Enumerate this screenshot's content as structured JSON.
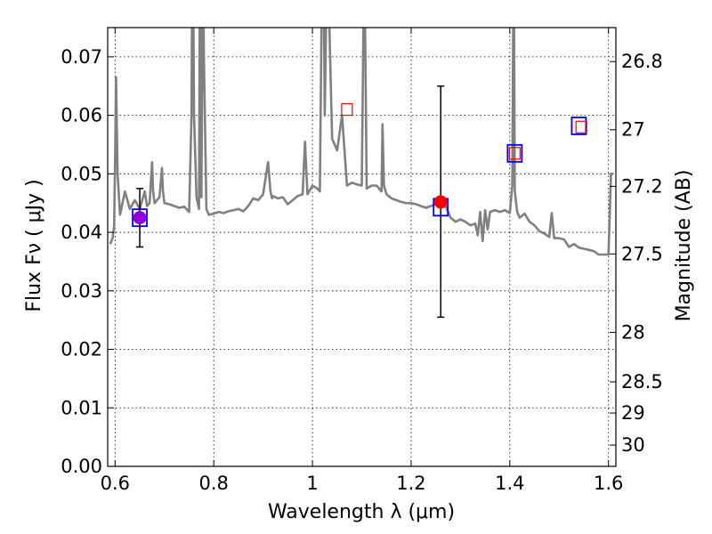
{
  "chart_data": {
    "type": "scatter",
    "xlabel": "Wavelength  λ (μm)",
    "ylabel": "Flux  Fν  ( μJy )",
    "y2label": "Magnitude (AB)",
    "xlim": [
      0.585,
      1.615
    ],
    "ylim": [
      0.0,
      0.075
    ],
    "grid": true,
    "x_ticks": [
      0.6,
      0.8,
      1.0,
      1.2,
      1.4,
      1.6
    ],
    "x_tick_labels": [
      "0.6",
      "0.8",
      "1",
      "1.2",
      "1.4",
      "1.6"
    ],
    "y_ticks": [
      0.0,
      0.01,
      0.02,
      0.03,
      0.04,
      0.05,
      0.06,
      0.07
    ],
    "y_tick_labels": [
      "0.00",
      "0.01",
      "0.02",
      "0.03",
      "0.04",
      "0.05",
      "0.06",
      "0.07"
    ],
    "y2_ticks": [
      26.8,
      27,
      27.2,
      27.5,
      28,
      28.5,
      29,
      30
    ],
    "y2_tick_labels": [
      "26.8",
      "27",
      "27.2",
      "27.5",
      "28",
      "28.5",
      "29",
      "30"
    ],
    "spectrum": {
      "color": "#808080",
      "x": [
        0.59,
        0.595,
        0.598,
        0.6,
        0.602,
        0.605,
        0.61,
        0.615,
        0.62,
        0.63,
        0.64,
        0.65,
        0.66,
        0.665,
        0.67,
        0.675,
        0.677,
        0.68,
        0.69,
        0.695,
        0.697,
        0.7,
        0.71,
        0.72,
        0.73,
        0.74,
        0.75,
        0.755,
        0.757,
        0.76,
        0.765,
        0.77,
        0.772,
        0.775,
        0.778,
        0.78,
        0.785,
        0.79,
        0.8,
        0.81,
        0.82,
        0.83,
        0.84,
        0.85,
        0.86,
        0.87,
        0.88,
        0.89,
        0.9,
        0.91,
        0.915,
        0.918,
        0.92,
        0.93,
        0.94,
        0.95,
        0.96,
        0.97,
        0.98,
        0.985,
        0.988,
        0.99,
        1.0,
        1.01,
        1.015,
        1.02,
        1.022,
        1.025,
        1.03,
        1.04,
        1.05,
        1.06,
        1.07,
        1.08,
        1.09,
        1.1,
        1.105,
        1.11,
        1.12,
        1.13,
        1.14,
        1.142,
        1.145,
        1.15,
        1.16,
        1.17,
        1.18,
        1.19,
        1.2,
        1.21,
        1.22,
        1.23,
        1.24,
        1.25,
        1.26,
        1.27,
        1.28,
        1.29,
        1.3,
        1.31,
        1.32,
        1.33,
        1.335,
        1.34,
        1.345,
        1.35,
        1.355,
        1.36,
        1.37,
        1.38,
        1.39,
        1.4,
        1.405,
        1.408,
        1.41,
        1.415,
        1.42,
        1.43,
        1.44,
        1.45,
        1.46,
        1.47,
        1.48,
        1.485,
        1.49,
        1.5,
        1.51,
        1.52,
        1.53,
        1.54,
        1.55,
        1.56,
        1.57,
        1.58,
        1.59,
        1.595,
        1.6,
        1.605,
        1.61
      ],
      "y": [
        0.038,
        0.039,
        0.041,
        0.052,
        0.0665,
        0.05,
        0.043,
        0.045,
        0.047,
        0.044,
        0.0455,
        0.044,
        0.047,
        0.0445,
        0.045,
        0.052,
        0.047,
        0.045,
        0.046,
        0.051,
        0.047,
        0.045,
        0.0448,
        0.0445,
        0.0442,
        0.0444,
        0.0435,
        0.06,
        0.1,
        0.06,
        0.046,
        0.044,
        0.09,
        0.046,
        0.09,
        0.07,
        0.044,
        0.043,
        0.0432,
        0.0435,
        0.0433,
        0.0436,
        0.0438,
        0.044,
        0.0436,
        0.0445,
        0.0458,
        0.0455,
        0.0465,
        0.052,
        0.047,
        0.0458,
        0.0462,
        0.0458,
        0.046,
        0.0448,
        0.0455,
        0.0462,
        0.0465,
        0.0555,
        0.05,
        0.0465,
        0.048,
        0.0475,
        0.047,
        0.09,
        0.09,
        0.06,
        0.09,
        0.056,
        0.054,
        0.06,
        0.048,
        0.0485,
        0.0482,
        0.048,
        0.09,
        0.0475,
        0.048,
        0.048,
        0.047,
        0.0585,
        0.048,
        0.0465,
        0.0458,
        0.0455,
        0.0452,
        0.045,
        0.045,
        0.0448,
        0.0445,
        0.0442,
        0.0445,
        0.0448,
        0.045,
        0.0445,
        0.0425,
        0.0418,
        0.0422,
        0.0418,
        0.0412,
        0.0415,
        0.0395,
        0.0435,
        0.0385,
        0.0438,
        0.0405,
        0.0435,
        0.0438,
        0.0435,
        0.0438,
        0.0433,
        0.048,
        0.09,
        0.047,
        0.0435,
        0.0425,
        0.0432,
        0.0418,
        0.0412,
        0.0402,
        0.0398,
        0.0392,
        0.0433,
        0.039,
        0.039,
        0.0388,
        0.0375,
        0.038,
        0.0374,
        0.0372,
        0.037,
        0.0368,
        0.0362,
        0.0362,
        0.0362,
        0.0362,
        0.05,
        0.05
      ]
    },
    "models": {
      "color": "#0000ff",
      "x": [
        0.65,
        1.26,
        1.41,
        1.54
      ],
      "y": [
        0.0425,
        0.0443,
        0.0535,
        0.0582
      ]
    },
    "synthetic": {
      "color": "#ff0000",
      "x": [
        1.07,
        1.41,
        1.545
      ],
      "y": [
        0.061,
        0.0535,
        0.058
      ]
    },
    "observed": {
      "color": "#ff0000",
      "x": [
        0.65,
        1.26
      ],
      "y": [
        0.0425,
        0.0452
      ],
      "yerr_low": [
        0.0375,
        0.0255
      ],
      "yerr_high": [
        0.0475,
        0.065
      ],
      "fill": [
        "#9400d3",
        "#ff0000"
      ]
    }
  }
}
